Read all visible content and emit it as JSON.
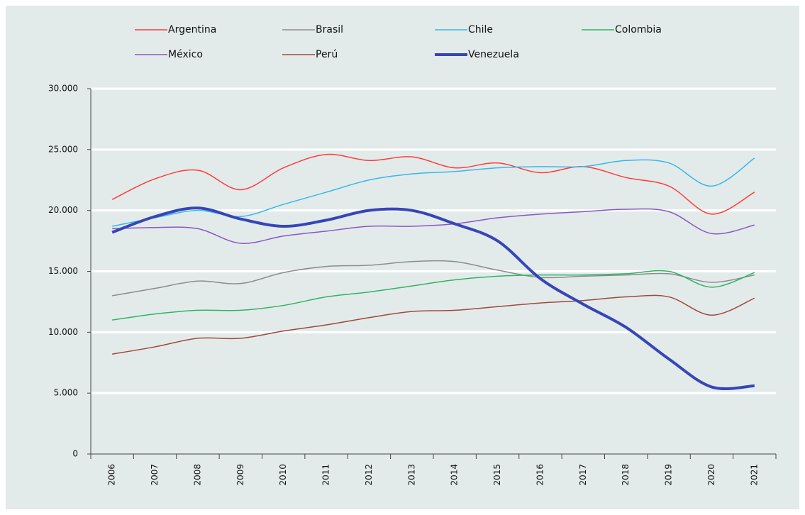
{
  "chart_data": {
    "type": "line",
    "categories": [
      "2006",
      "2007",
      "2008",
      "2009",
      "2010",
      "2011",
      "2012",
      "2013",
      "2014",
      "2015",
      "2016",
      "2017",
      "2018",
      "2019",
      "2020",
      "2021"
    ],
    "series": [
      {
        "name": "Argentina",
        "color": "#ff3b3b",
        "values": [
          20900,
          22600,
          23300,
          21700,
          23500,
          24600,
          24100,
          24400,
          23500,
          23900,
          23100,
          23600,
          22700,
          22000,
          19700,
          21500
        ]
      },
      {
        "name": "Brasil",
        "color": "#8c8c8c",
        "values": [
          13000,
          13600,
          14200,
          14000,
          14900,
          15400,
          15500,
          15800,
          15800,
          15100,
          14500,
          14600,
          14700,
          14800,
          14100,
          14700
        ]
      },
      {
        "name": "Chile",
        "color": "#35b8ea",
        "values": [
          18700,
          19400,
          20000,
          19500,
          20500,
          21500,
          22500,
          23000,
          23200,
          23500,
          23600,
          23600,
          24100,
          23900,
          22000,
          24300
        ]
      },
      {
        "name": "Colombia",
        "color": "#2fb463",
        "values": [
          11000,
          11500,
          11800,
          11800,
          12200,
          12900,
          13300,
          13800,
          14300,
          14600,
          14700,
          14700,
          14800,
          15000,
          13700,
          14900
        ]
      },
      {
        "name": "México",
        "color": "#8a56c8",
        "values": [
          18500,
          18600,
          18500,
          17300,
          17900,
          18300,
          18700,
          18700,
          18900,
          19400,
          19700,
          19900,
          20100,
          19900,
          18100,
          18800
        ]
      },
      {
        "name": "Perú",
        "color": "#a0493d",
        "values": [
          8200,
          8800,
          9500,
          9500,
          10100,
          10600,
          11200,
          11700,
          11800,
          12100,
          12400,
          12600,
          12900,
          12900,
          11400,
          12800
        ]
      },
      {
        "name": "Venezuela",
        "color": "#3646b8",
        "values": [
          18200,
          19500,
          20200,
          19300,
          18700,
          19200,
          20000,
          20000,
          18900,
          17500,
          14400,
          12300,
          10400,
          7800,
          5500,
          5600
        ]
      }
    ],
    "ylim": [
      0,
      30000
    ],
    "yticks": [
      0,
      {
        "value": 5000,
        "label": "5.000"
      },
      {
        "value": 10000,
        "label": "10.000"
      },
      {
        "value": 15000,
        "label": "15.000"
      },
      {
        "value": 20000,
        "label": "20.000"
      },
      {
        "value": 25000,
        "label": "25.000"
      },
      {
        "value": 30000,
        "label": "30.000"
      }
    ],
    "grid": true
  }
}
